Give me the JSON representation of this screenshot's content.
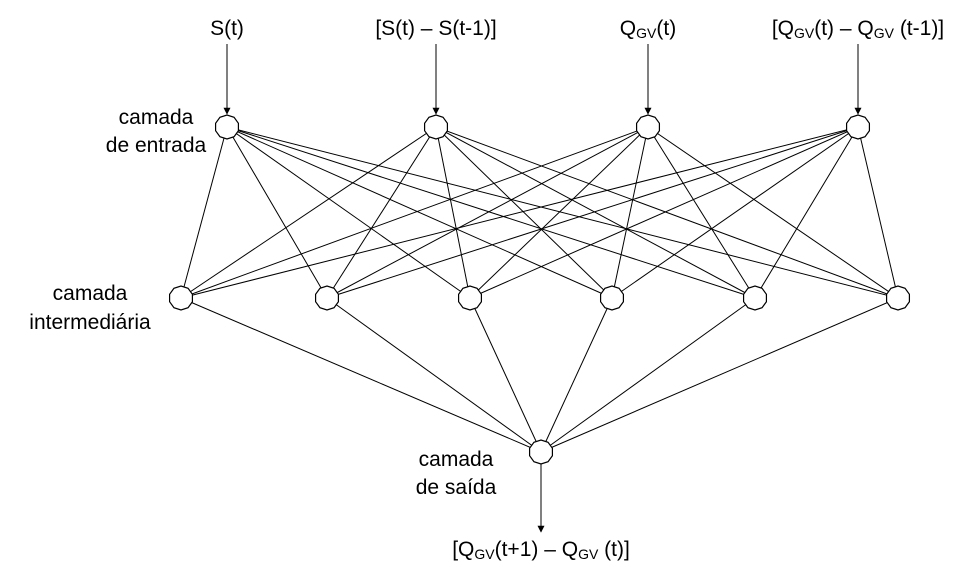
{
  "inputs": {
    "in1": {
      "main": "S(t)"
    },
    "in2": {
      "main": "[S(t) – S(t-1)]"
    },
    "in3": {
      "pre": "Q",
      "sub": "GV",
      "post": "(t)"
    },
    "in4": {
      "pre": "[Q",
      "sub1": "GV",
      "mid": "(t) – Q",
      "sub2": "GV",
      "post": " (t-1)]"
    }
  },
  "layers": {
    "input_line1": "camada",
    "input_line2": "de entrada",
    "hidden_line1": "camada",
    "hidden_line2": "intermediária",
    "output_line1": "camada",
    "output_line2": "de saída"
  },
  "output": {
    "pre": "[Q",
    "sub1": "GV",
    "mid": "(t+1) – Q",
    "sub2": "GV",
    "post": " (t)]"
  },
  "network": {
    "input_nodes": 4,
    "hidden_nodes": 6,
    "output_nodes": 1
  }
}
